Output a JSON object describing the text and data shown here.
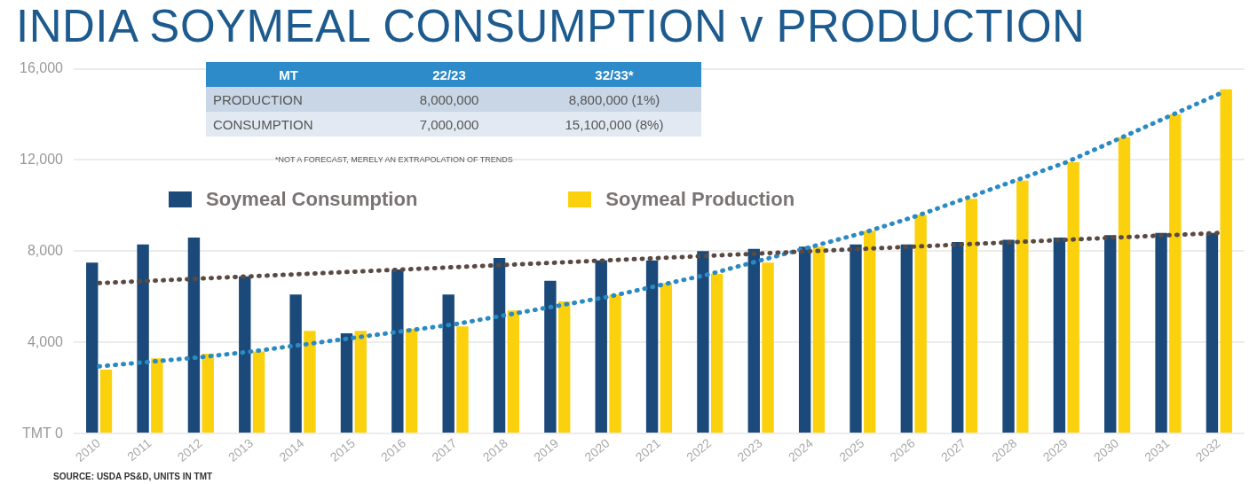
{
  "chart_data": {
    "type": "bar",
    "title": "INDIA SOYMEAL CONSUMPTION v PRODUCTION",
    "categories": [
      "2010",
      "2011",
      "2012",
      "2013",
      "2014",
      "2015",
      "2016",
      "2017",
      "2018",
      "2019",
      "2020",
      "2021",
      "2022",
      "2023",
      "2024",
      "2025",
      "2026",
      "2027",
      "2028",
      "2029",
      "2030",
      "2031",
      "2032"
    ],
    "series": [
      {
        "name": "Soymeal Consumption",
        "color": "#1b4a7a",
        "values": [
          7500,
          8300,
          8600,
          6900,
          6100,
          4400,
          7200,
          6100,
          7700,
          6700,
          7600,
          7600,
          8000,
          8100,
          8200,
          8300,
          8300,
          8400,
          8500,
          8600,
          8700,
          8800,
          8800
        ]
      },
      {
        "name": "Soymeal Production",
        "color": "#fbd10d",
        "values": [
          2800,
          3300,
          3500,
          3600,
          4500,
          4500,
          4600,
          4700,
          5400,
          5800,
          6100,
          6600,
          7000,
          7500,
          8200,
          8900,
          9600,
          10300,
          11100,
          11900,
          13000,
          14000,
          15100
        ]
      },
      {
        "type": "line",
        "color": "#5a4a42",
        "line_style": "dotted",
        "values": [
          6600,
          6700,
          6800,
          6900,
          7000,
          7100,
          7200,
          7300,
          7400,
          7500,
          7600,
          7700,
          7800,
          7900,
          8000,
          8100,
          8200,
          8300,
          8400,
          8500,
          8600,
          8700,
          8800
        ]
      },
      {
        "type": "line",
        "color": "#2a8ac4",
        "line_style": "dotted",
        "values": [
          2950,
          3150,
          3350,
          3600,
          3900,
          4200,
          4500,
          4800,
          5200,
          5600,
          6000,
          6500,
          7000,
          7600,
          8200,
          8800,
          9500,
          10300,
          11100,
          11900,
          12900,
          13900,
          14900
        ]
      }
    ],
    "ylim": [
      0,
      16000
    ],
    "yticks": [
      {
        "value": 0,
        "label": "TMT 0"
      },
      {
        "value": 4000,
        "label": "4,000"
      },
      {
        "value": 8000,
        "label": "8,000"
      },
      {
        "value": 12000,
        "label": "12,000"
      },
      {
        "value": 16000,
        "label": "16,000"
      }
    ],
    "grid": "y",
    "legend": "top",
    "annotations": [
      "MT",
      "22/23",
      "32/33*",
      "PRODUCTION",
      "8,000,000",
      "8,800,000 (1%)",
      "CONSUMPTION",
      "7,000,000",
      "15,100,000 (8%)",
      "*NOT A FORECAST, MERELY AN EXTRAPOLATION OF TRENDS",
      "SOURCE: USDA PS&D, UNITS IN TMT"
    ]
  }
}
